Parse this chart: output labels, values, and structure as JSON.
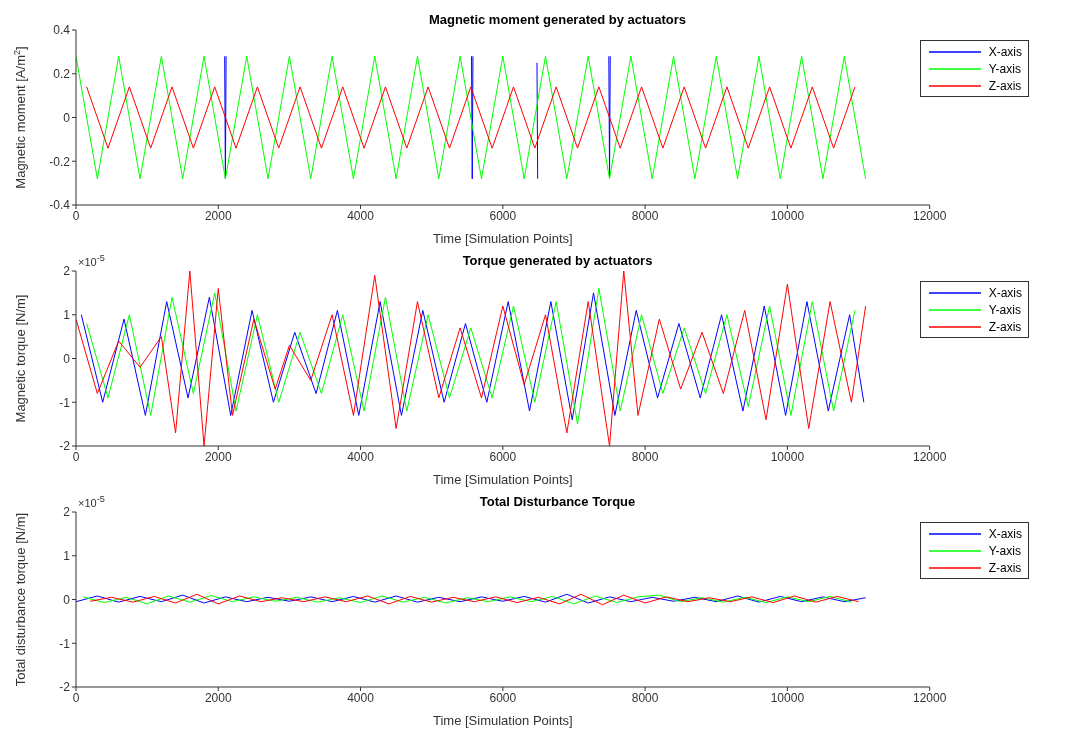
{
  "chart_data": [
    {
      "type": "line",
      "title": "Magnetic moment generated by actuators",
      "xlabel": "Time [Simulation Points]",
      "ylabel": "Magnetic moment [A/m$^{2}$]",
      "xlim": [
        0,
        12000
      ],
      "xticks": [
        0,
        2000,
        4000,
        6000,
        8000,
        10000,
        12000
      ],
      "ylim": [
        -0.4,
        0.4
      ],
      "yticks": [
        -0.4,
        -0.2,
        0,
        0.2,
        0.4
      ],
      "legend": "top right",
      "series": [
        {
          "name": "X-axis",
          "color": "#0000ff",
          "x": [
            2090,
            2100,
            2110,
            2120,
            5560,
            5570,
            5580,
            5590,
            6480,
            6490,
            6500,
            7490,
            7500,
            7510
          ],
          "values": [
            0.28,
            -0.28,
            0.28,
            null,
            0.28,
            -0.28,
            0.28,
            null,
            0.25,
            -0.28,
            null,
            0.28,
            -0.27,
            0.28
          ]
        },
        {
          "name": "Y-axis",
          "color": "#00ff00",
          "x": [
            0,
            300,
            600,
            900,
            1200,
            1500,
            1800,
            2100,
            2400,
            2700,
            3000,
            3300,
            3600,
            3900,
            4200,
            4500,
            4800,
            5100,
            5400,
            5700,
            6000,
            6300,
            6600,
            6900,
            7200,
            7500,
            7800,
            8100,
            8400,
            8700,
            9000,
            9300,
            9600,
            9900,
            10200,
            10500,
            10800,
            11100
          ],
          "values": [
            0.28,
            -0.28,
            0.28,
            -0.28,
            0.28,
            -0.28,
            0.28,
            -0.28,
            0.28,
            -0.28,
            0.28,
            -0.28,
            0.28,
            -0.28,
            0.28,
            -0.28,
            0.28,
            -0.28,
            0.28,
            -0.28,
            0.28,
            -0.28,
            0.28,
            -0.28,
            0.28,
            -0.28,
            0.28,
            -0.28,
            0.28,
            -0.28,
            0.28,
            -0.28,
            0.28,
            -0.28,
            0.28,
            -0.28,
            0.28,
            -0.28
          ]
        },
        {
          "name": "Z-axis",
          "color": "#ff0000",
          "x": [
            150,
            450,
            750,
            1050,
            1350,
            1650,
            1950,
            2250,
            2550,
            2850,
            3150,
            3450,
            3750,
            4050,
            4350,
            4650,
            4950,
            5250,
            5550,
            5850,
            6150,
            6450,
            6750,
            7050,
            7350,
            7650,
            7950,
            8250,
            8550,
            8850,
            9150,
            9450,
            9750,
            10050,
            10350,
            10650,
            10950
          ],
          "values": [
            0.14,
            -0.14,
            0.14,
            -0.14,
            0.14,
            -0.14,
            0.14,
            -0.14,
            0.14,
            -0.14,
            0.14,
            -0.14,
            0.14,
            -0.14,
            0.14,
            -0.14,
            0.14,
            -0.14,
            0.14,
            -0.14,
            0.14,
            -0.14,
            0.14,
            -0.14,
            0.14,
            -0.14,
            0.14,
            -0.14,
            0.14,
            -0.14,
            0.14,
            -0.14,
            0.14,
            -0.14,
            0.14,
            -0.14,
            0.14
          ]
        }
      ]
    },
    {
      "type": "line",
      "title": "Torque generated by actuators",
      "xlabel": "Time [Simulation Points]",
      "ylabel": "Magnetic torque [N/m]",
      "annotations": [
        "×10$^{-5}$"
      ],
      "xlim": [
        0,
        12000
      ],
      "xticks": [
        0,
        2000,
        4000,
        6000,
        8000,
        10000,
        12000
      ],
      "ylim": [
        -2,
        2
      ],
      "yticks": [
        -2,
        -1,
        0,
        1,
        2
      ],
      "legend": "top right",
      "series": [
        {
          "name": "X-axis",
          "color": "#0000ff",
          "x": [
            75,
            375,
            675,
            975,
            1275,
            1575,
            1875,
            2175,
            2475,
            2775,
            3075,
            3375,
            3675,
            3975,
            4275,
            4575,
            4875,
            5175,
            5475,
            5775,
            6075,
            6375,
            6675,
            6975,
            7275,
            7575,
            7875,
            8175,
            8475,
            8775,
            9075,
            9375,
            9675,
            9975,
            10275,
            10575,
            10875,
            11075
          ],
          "values": [
            1.0,
            -1.0,
            0.9,
            -1.3,
            1.3,
            -0.9,
            1.4,
            -1.3,
            1.1,
            -1.0,
            0.6,
            -0.8,
            1.1,
            -1.3,
            1.3,
            -1.3,
            1.1,
            -1.0,
            0.8,
            -1.0,
            1.3,
            -1.2,
            1.3,
            -1.4,
            1.5,
            -1.3,
            1.1,
            -0.9,
            0.8,
            -0.9,
            1.0,
            -1.2,
            1.2,
            -1.3,
            1.3,
            -1.2,
            1.0,
            -1.0
          ]
        },
        {
          "name": "Y-axis",
          "color": "#00ff00",
          "x": [
            150,
            450,
            750,
            1050,
            1350,
            1650,
            1950,
            2250,
            2550,
            2850,
            3150,
            3450,
            3750,
            4050,
            4350,
            4650,
            4950,
            5250,
            5550,
            5850,
            6150,
            6450,
            6750,
            7050,
            7350,
            7650,
            7950,
            8250,
            8550,
            8850,
            9150,
            9450,
            9750,
            10050,
            10350,
            10650,
            10950
          ],
          "values": [
            0.8,
            -0.9,
            1.0,
            -1.3,
            1.4,
            -0.8,
            1.5,
            -1.2,
            1.0,
            -1.0,
            0.6,
            -0.8,
            1.0,
            -1.2,
            1.4,
            -1.2,
            1.0,
            -0.9,
            0.7,
            -0.9,
            1.2,
            -1.0,
            1.3,
            -1.5,
            1.6,
            -1.2,
            1.0,
            -0.8,
            0.7,
            -0.8,
            1.0,
            -1.1,
            1.2,
            -1.3,
            1.3,
            -1.2,
            1.1
          ]
        },
        {
          "name": "Z-axis",
          "color": "#ff0000",
          "x": [
            0,
            300,
            600,
            900,
            1200,
            1400,
            1600,
            1800,
            2000,
            2200,
            2500,
            2800,
            3000,
            3300,
            3600,
            3900,
            4200,
            4500,
            4800,
            5100,
            5400,
            5700,
            6000,
            6300,
            6600,
            6900,
            7200,
            7500,
            7700,
            7900,
            8200,
            8500,
            8800,
            9100,
            9400,
            9700,
            10000,
            10300,
            10600,
            10900,
            11100
          ],
          "values": [
            0.9,
            -0.8,
            0.4,
            -0.2,
            0.5,
            -1.7,
            2.0,
            -2.0,
            1.6,
            -1.3,
            0.9,
            -0.7,
            0.3,
            -0.5,
            1.0,
            -1.3,
            1.9,
            -1.6,
            1.3,
            -0.9,
            0.7,
            -0.9,
            1.2,
            -0.6,
            1.0,
            -1.7,
            1.3,
            -2.0,
            2.0,
            -1.3,
            0.9,
            -0.7,
            0.6,
            -0.8,
            1.1,
            -1.4,
            1.7,
            -1.6,
            1.3,
            -1.0,
            1.2
          ]
        }
      ]
    },
    {
      "type": "line",
      "title": "Total Disturbance Torque",
      "xlabel": "Time [Simulation Points]",
      "ylabel": "Total disturbance torque [N/m]",
      "annotations": [
        "×10$^{-5}$"
      ],
      "xlim": [
        0,
        12000
      ],
      "xticks": [
        0,
        2000,
        4000,
        6000,
        8000,
        10000,
        12000
      ],
      "ylim": [
        -2,
        2
      ],
      "yticks": [
        -2,
        -1,
        0,
        1,
        2
      ],
      "legend": "top right",
      "series": [
        {
          "name": "X-axis",
          "color": "#0000ff",
          "x": [
            0,
            300,
            600,
            900,
            1200,
            1500,
            1800,
            2100,
            2400,
            2700,
            3000,
            3300,
            3600,
            3900,
            4200,
            4500,
            4800,
            5100,
            5400,
            5700,
            6000,
            6300,
            6600,
            6900,
            7200,
            7500,
            7800,
            8100,
            8400,
            8700,
            9000,
            9300,
            9600,
            9900,
            10200,
            10500,
            10800,
            11100
          ],
          "values": [
            -0.05,
            0.08,
            -0.06,
            0.07,
            -0.05,
            0.1,
            -0.08,
            0.06,
            -0.05,
            0.05,
            -0.04,
            0.06,
            -0.05,
            0.07,
            -0.06,
            0.08,
            -0.06,
            0.05,
            -0.05,
            0.06,
            -0.04,
            0.07,
            -0.06,
            0.12,
            -0.08,
            0.06,
            -0.05,
            0.05,
            -0.04,
            0.05,
            -0.05,
            0.08,
            -0.06,
            0.07,
            -0.05,
            0.06,
            -0.05,
            0.04
          ]
        },
        {
          "name": "Y-axis",
          "color": "#00ff00",
          "x": [
            100,
            400,
            700,
            1000,
            1300,
            1600,
            1900,
            2200,
            2500,
            2800,
            3100,
            3400,
            3700,
            4000,
            4300,
            4600,
            4900,
            5200,
            5500,
            5800,
            6100,
            6400,
            6700,
            7000,
            7300,
            7600,
            7900,
            8200,
            8500,
            8800,
            9100,
            9400,
            9700,
            10000,
            10300,
            10600,
            10900
          ],
          "values": [
            0.06,
            -0.07,
            0.05,
            -0.1,
            0.08,
            -0.06,
            0.09,
            -0.05,
            0.06,
            -0.04,
            0.05,
            -0.06,
            0.04,
            -0.07,
            0.08,
            -0.06,
            0.05,
            -0.08,
            0.04,
            -0.05,
            0.06,
            -0.05,
            0.07,
            -0.1,
            0.08,
            -0.07,
            0.06,
            0.1,
            -0.05,
            0.04,
            -0.06,
            0.05,
            -0.07,
            0.06,
            -0.05,
            0.07,
            -0.06
          ]
        },
        {
          "name": "Z-axis",
          "color": "#ff0000",
          "x": [
            200,
            500,
            800,
            1100,
            1400,
            1700,
            2000,
            2300,
            2600,
            2900,
            3200,
            3500,
            3800,
            4100,
            4400,
            4700,
            5000,
            5300,
            5600,
            5900,
            6200,
            6500,
            6800,
            7100,
            7400,
            7700,
            8000,
            8300,
            8600,
            8900,
            9200,
            9500,
            9800,
            10100,
            10400,
            10700,
            11000
          ],
          "values": [
            -0.04,
            0.05,
            -0.06,
            0.07,
            -0.08,
            0.12,
            -0.1,
            0.08,
            -0.05,
            0.04,
            -0.05,
            0.06,
            -0.05,
            0.08,
            -0.1,
            0.07,
            -0.06,
            0.05,
            -0.05,
            0.06,
            -0.07,
            0.05,
            -0.1,
            0.12,
            -0.12,
            0.1,
            -0.08,
            0.06,
            -0.05,
            0.04,
            -0.05,
            0.06,
            -0.07,
            0.08,
            -0.06,
            0.07,
            -0.05
          ]
        }
      ]
    }
  ]
}
